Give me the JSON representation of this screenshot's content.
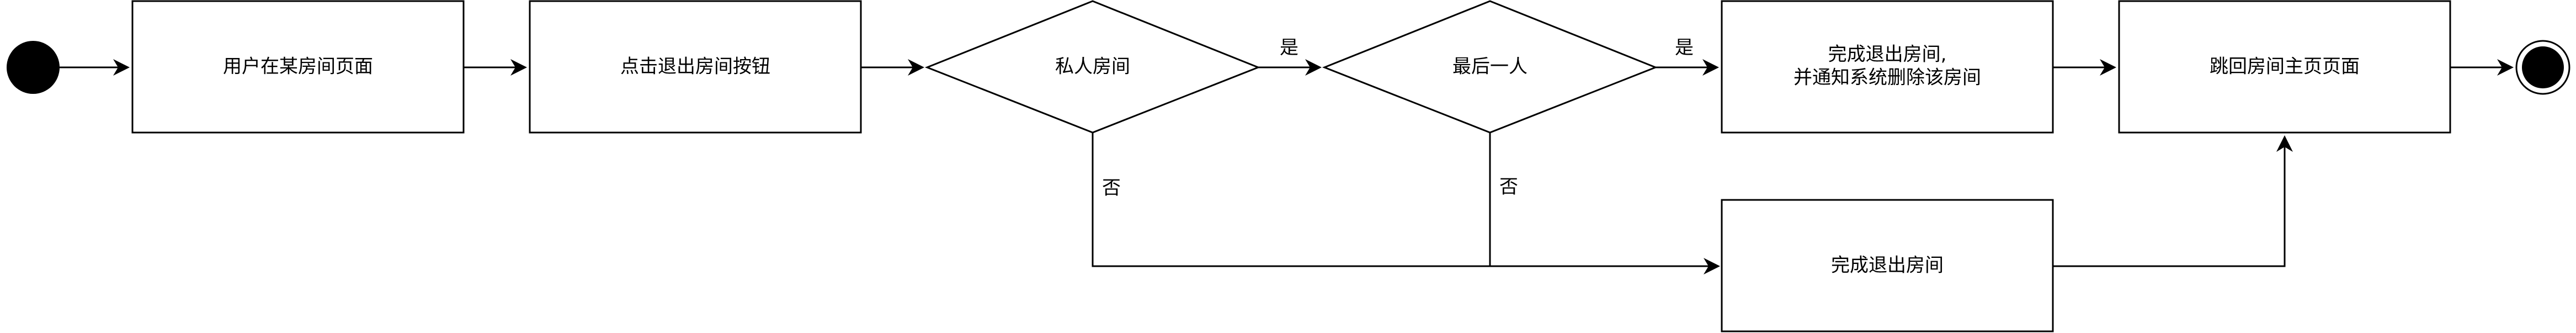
{
  "diagram": {
    "type": "activity-flowchart",
    "nodes": {
      "user_on_room_page": "用户在某房间页面",
      "click_exit_button": "点击退出房间按钮",
      "private_room": "私人房间",
      "last_person": "最后一人",
      "complete_exit_and_notify_line1": "完成退出房间,",
      "complete_exit_and_notify_line2": "并通知系统删除该房间",
      "return_to_room_home": "跳回房间主页页面",
      "complete_exit": "完成退出房间"
    },
    "edge_labels": {
      "private_yes": "是",
      "last_yes": "是",
      "private_no": "否",
      "last_no": "否"
    }
  }
}
